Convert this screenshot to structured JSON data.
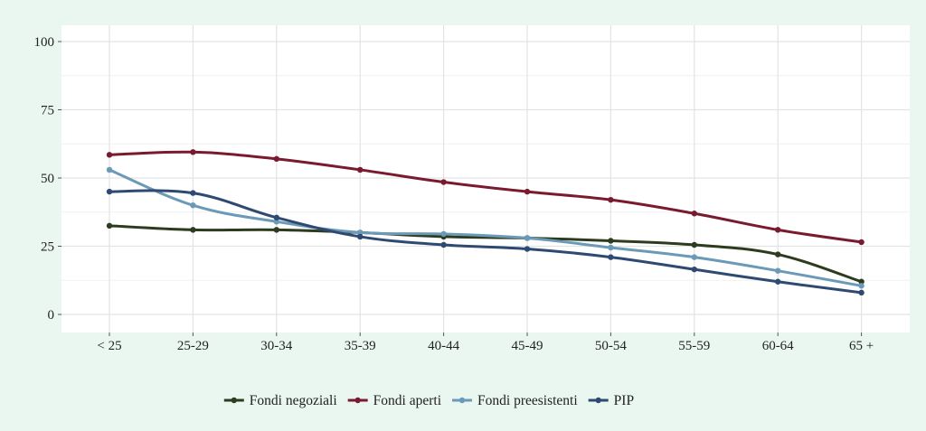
{
  "chart_data": {
    "type": "line",
    "title": "",
    "xlabel": "",
    "ylabel": "",
    "categories": [
      "< 25",
      "25-29",
      "30-34",
      "35-39",
      "40-44",
      "45-49",
      "50-54",
      "55-59",
      "60-64",
      "65 +"
    ],
    "ylim": [
      0,
      100
    ],
    "yticks": [
      0,
      25,
      50,
      75,
      100
    ],
    "grid": true,
    "legend_position": "bottom",
    "series": [
      {
        "name": "Fondi negoziali",
        "color": "#2d3b1f",
        "values": [
          32.5,
          31,
          31,
          30,
          28.5,
          28,
          27,
          25.5,
          22,
          12
        ]
      },
      {
        "name": "Fondi aperti",
        "color": "#7a1a2e",
        "values": [
          58.5,
          59.5,
          57,
          53,
          48.5,
          45,
          42,
          37,
          31,
          26.5
        ]
      },
      {
        "name": "Fondi preesistenti",
        "color": "#6a9ab8",
        "values": [
          53,
          40,
          34,
          30,
          29.5,
          28,
          24.5,
          21,
          16,
          10.5
        ]
      },
      {
        "name": "PIP",
        "color": "#2f4a72",
        "values": [
          45,
          44.5,
          35.5,
          28.5,
          25.5,
          24,
          21,
          16.5,
          12,
          8
        ]
      }
    ]
  }
}
